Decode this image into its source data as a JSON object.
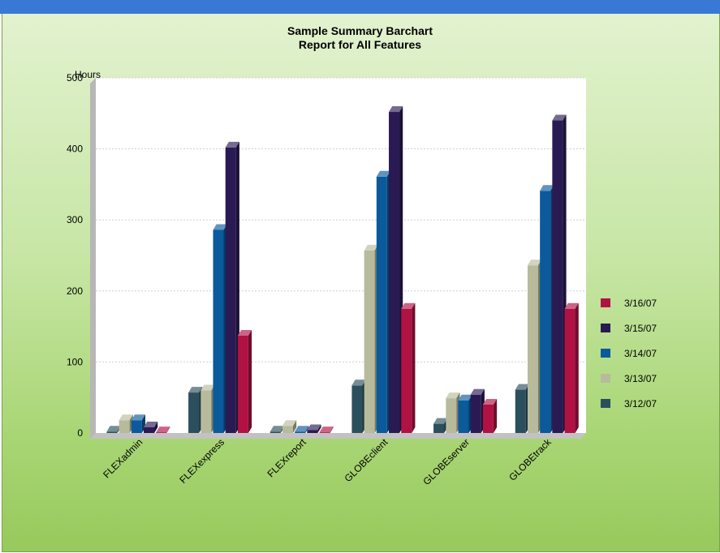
{
  "chart_data": {
    "type": "bar",
    "title": "Sample Summary Barchart",
    "subtitle": "Report for All Features",
    "ylabel": "Hours",
    "xlabel": "",
    "ylim": [
      0,
      500
    ],
    "yticks": [
      0,
      100,
      200,
      300,
      400,
      500
    ],
    "grid": true,
    "legend_position": "right",
    "categories": [
      "FLEXadmin",
      "FLEXexpress",
      "FLEXreport",
      "GLOBEclient",
      "GLOBEserver",
      "GLOBEtrack"
    ],
    "series": [
      {
        "name": "3/12/07",
        "color": "#2b4f5c",
        "values": [
          2,
          57,
          2,
          67,
          13,
          61
        ]
      },
      {
        "name": "3/13/07",
        "color": "#b7bb9c",
        "values": [
          18,
          60,
          10,
          257,
          49,
          236
        ]
      },
      {
        "name": "3/14/07",
        "color": "#0a5a9c",
        "values": [
          18,
          286,
          2,
          361,
          46,
          341
        ]
      },
      {
        "name": "3/15/07",
        "color": "#2a1a54",
        "values": [
          8,
          402,
          4,
          452,
          54,
          440
        ]
      },
      {
        "name": "3/16/07",
        "color": "#b01244",
        "values": [
          1,
          137,
          1,
          175,
          40,
          175
        ]
      }
    ]
  }
}
